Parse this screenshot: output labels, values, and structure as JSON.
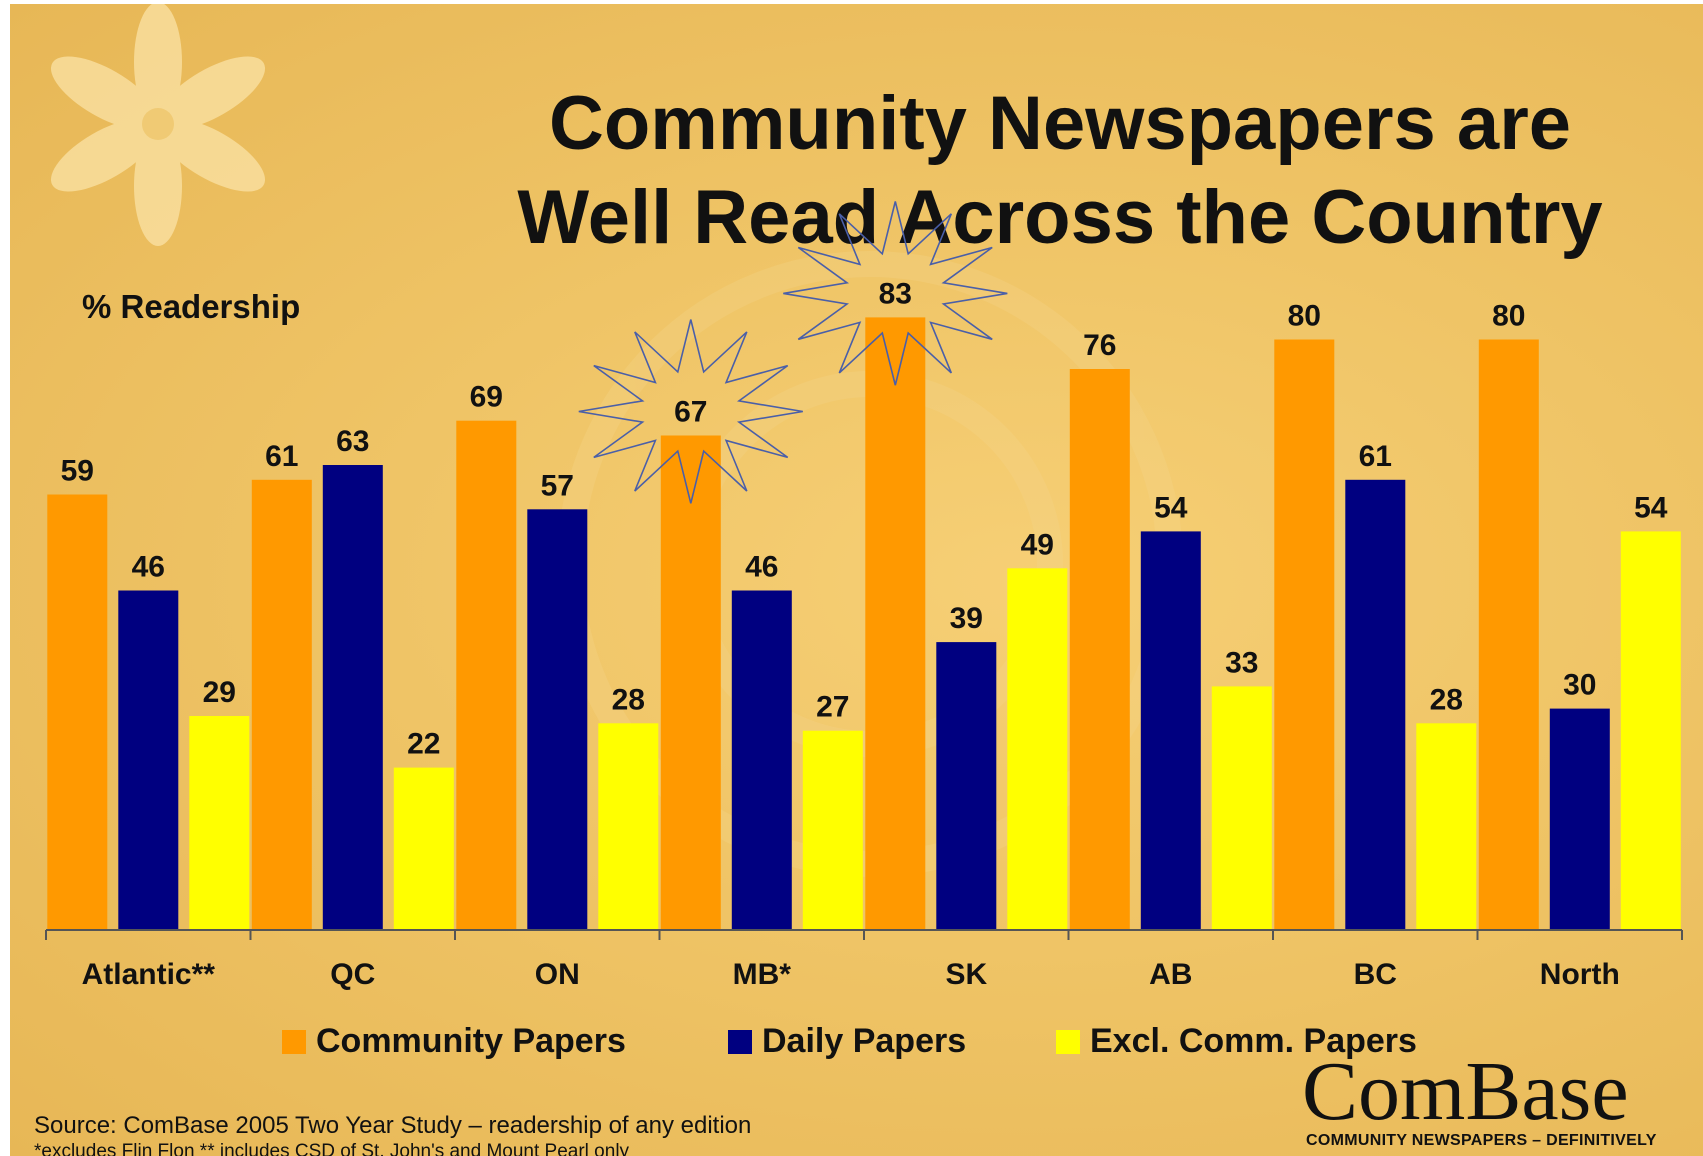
{
  "title": {
    "line1": "Community Newspapers are",
    "line2": "Well Read Across the Country"
  },
  "colors": {
    "community": "#ff9900",
    "daily": "#000080",
    "excl": "#ffff00"
  },
  "legend": {
    "community": "Community Papers",
    "daily": "Daily Papers",
    "excl": "Excl. Comm. Papers"
  },
  "chart_data": {
    "type": "bar",
    "ylabel": "% Readership",
    "ylim": [
      0,
      84
    ],
    "categories": [
      "Atlantic**",
      "QC",
      "ON",
      "MB*",
      "SK",
      "AB",
      "BC",
      "North"
    ],
    "series": [
      {
        "name": "Community Papers",
        "values": [
          59,
          61,
          69,
          67,
          83,
          76,
          80,
          80
        ]
      },
      {
        "name": "Daily Papers",
        "values": [
          46,
          63,
          57,
          46,
          39,
          54,
          61,
          30
        ]
      },
      {
        "name": "Excl. Comm. Papers",
        "values": [
          29,
          22,
          28,
          27,
          49,
          33,
          28,
          54
        ]
      }
    ],
    "highlighted": [
      "MB*",
      "SK"
    ],
    "grid": false,
    "legend_position": "bottom"
  },
  "footer": {
    "source": "Source:  ComBase 2005 Two Year Study – readership of any edition",
    "note": "*excludes Flin Flon ** includes CSD of St. John's and Mount Pearl only"
  },
  "brand": {
    "name": "ComBase",
    "tagline": "COMMUNITY NEWSPAPERS – DEFINITIVELY"
  }
}
